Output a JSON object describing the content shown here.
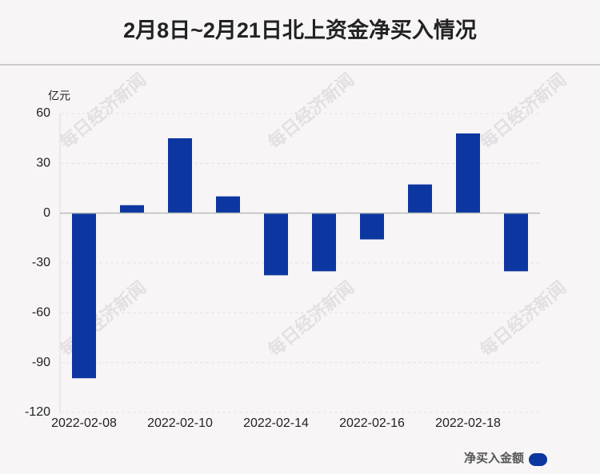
{
  "chart_data": {
    "type": "bar",
    "title": "2月8日~2月21日北上资金净买入情况",
    "y_axis_label": "亿元",
    "watermark": "每日经济新闻",
    "categories": [
      "2022-02-08",
      null,
      "2022-02-10",
      null,
      "2022-02-14",
      null,
      "2022-02-16",
      null,
      "2022-02-18",
      null
    ],
    "series": [
      {
        "name": "净买入金额",
        "color": "#0d37a0",
        "values": [
          -99.4,
          4.8,
          45.1,
          10.1,
          -37.4,
          -35.0,
          -15.8,
          17.3,
          48.0,
          -35.0
        ]
      }
    ],
    "ylim": [
      -120,
      60
    ],
    "yticks": [
      -120,
      -90,
      -60,
      -30,
      0,
      30,
      60
    ],
    "grid": true,
    "legend": "bottom-right"
  }
}
